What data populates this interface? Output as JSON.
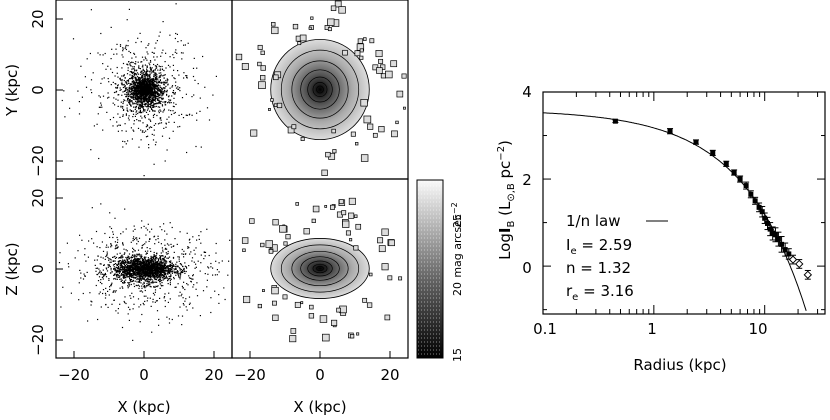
{
  "chart_data": [
    {
      "type": "scatter",
      "panel": "top-left",
      "description": "face-on particle distribution",
      "xlim": [
        -25,
        25
      ],
      "ylim": [
        -25,
        25
      ],
      "ylabel": "Y (kpc)",
      "xlabel": "",
      "yticks": [
        "20",
        "0",
        "−20"
      ]
    },
    {
      "type": "heatmap",
      "panel": "top-right",
      "xlim": [
        -25,
        25
      ],
      "ylim": [
        -25,
        25
      ]
    },
    {
      "type": "scatter",
      "panel": "bottom-left",
      "xlim": [
        -25,
        25
      ],
      "ylim": [
        -25,
        25
      ],
      "ylabel": "Z (kpc)",
      "xlabel": "X (kpc)",
      "yticks": [
        "20",
        "0",
        "−20"
      ],
      "xticks": [
        "−20",
        "0",
        "20"
      ]
    },
    {
      "type": "heatmap",
      "panel": "bottom-right",
      "xlim": [
        -25,
        25
      ],
      "ylim": [
        -25,
        25
      ],
      "xlabel": "X (kpc)",
      "xticks": [
        "−20",
        "0",
        "20"
      ],
      "colorbar": {
        "label": "mag arcsec⁻²",
        "ticks": [
          "25",
          "20",
          "15"
        ],
        "range": [
          15,
          28
        ]
      }
    },
    {
      "type": "scatter",
      "panel": "profile",
      "xscale": "log",
      "xlim": [
        0.1,
        35
      ],
      "ylim": [
        -1.1,
        4
      ],
      "xlabel": "Radius (kpc)",
      "ylabel": "Log[I_B (L_⊙,B pc⁻²)]",
      "xticks": [
        "0.1",
        "1",
        "10"
      ],
      "yticks": [
        "4",
        "2",
        "0"
      ],
      "series": [
        {
          "name": "1/n law",
          "kind": "line",
          "params": {
            "I_e": 2.59,
            "n": 1.32,
            "r_e": 3.16
          }
        },
        {
          "kind": "points",
          "x": [
            0.45,
            1.4,
            2.4,
            3.4,
            4.5,
            5.3,
            6.0,
            6.8,
            7.5,
            8.2,
            8.9,
            9.5,
            10.0,
            10.6,
            11.2,
            11.8,
            12.5,
            13.3,
            14.2,
            15.3,
            16.5,
            18.0,
            20.5,
            24.5
          ],
          "y": [
            3.33,
            3.1,
            2.85,
            2.6,
            2.35,
            2.15,
            2.0,
            1.85,
            1.65,
            1.5,
            1.35,
            1.25,
            1.1,
            0.98,
            0.85,
            0.75,
            0.72,
            0.62,
            0.5,
            0.38,
            0.28,
            0.15,
            0.05,
            -0.2
          ],
          "err": [
            0.03,
            0.06,
            0.05,
            0.06,
            0.06,
            0.06,
            0.07,
            0.08,
            0.08,
            0.08,
            0.1,
            0.12,
            0.12,
            0.14,
            0.15,
            0.15,
            0.16,
            0.16,
            0.18,
            0.15,
            0.12,
            0.1,
            0.1,
            0.1
          ]
        }
      ],
      "legend": {
        "line_label": "1/n law",
        "ie_label": "I",
        "ie_sub": "e",
        "ie_value": "= 2.59",
        "n_label": "n",
        "n_value": "= 1.32",
        "re_label": "r",
        "re_sub": "e",
        "re_value": "= 3.16"
      }
    }
  ],
  "labels": {
    "y_top": "Y (kpc)",
    "z_bottom": "Z (kpc)",
    "x_left": "X (kpc)",
    "x_right": "X (kpc)",
    "colorbar_title": "mag arcsec",
    "colorbar_sup": "−2",
    "radius": "Radius (kpc)",
    "logib_pre": "Log",
    "logib_I": "I",
    "logib_B": "B",
    "logib_paren": "(L",
    "logib_sun": "⊙,B",
    "logib_pc": "pc",
    "logib_sup": "−2",
    "logib_close": ")",
    "tick_20": "20",
    "tick_0": "0",
    "tick_m20": "−20",
    "cb_25": "25",
    "cb_20": "20",
    "cb_15": "15",
    "p_4": "4",
    "p_2": "2",
    "p_0": "0",
    "p_01": "0.1",
    "p_1": "1",
    "p_10": "10"
  }
}
